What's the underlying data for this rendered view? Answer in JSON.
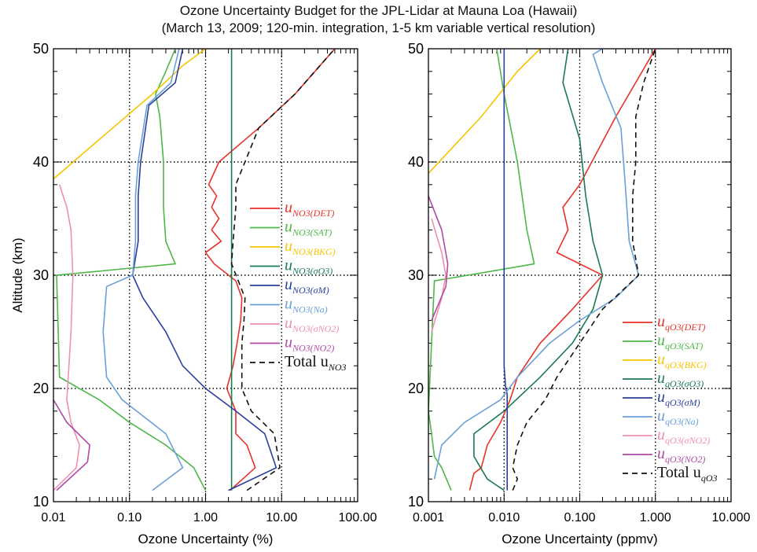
{
  "title_line1": "Ozone Uncertainty Budget for the JPL-Lidar at Mauna Loa (Hawaii)",
  "title_line2": "(March 13, 2009; 120-min. integration, 1-5 km variable vertical resolution)",
  "colors": {
    "det": "#e8312a",
    "sat": "#4cb848",
    "bkg": "#f5c400",
    "so3": "#1a7a52",
    "sm": "#2b3f9e",
    "na": "#6aa0d8",
    "sno2": "#f08fb0",
    "no2": "#b04aa8",
    "total": "#111111"
  },
  "chart_data": [
    {
      "type": "line",
      "xscale": "log",
      "xlim": [
        0.01,
        100
      ],
      "ylim": [
        10,
        50
      ],
      "xticks": [
        0.01,
        0.1,
        1,
        10,
        100
      ],
      "xticklabels": [
        "0.01",
        "0.10",
        "1.00",
        "10.00",
        "100.00"
      ],
      "yticks": [
        10,
        20,
        30,
        40,
        50
      ],
      "yticklabels": [
        "10",
        "20",
        "30",
        "40",
        "50"
      ],
      "xlabel": "Ozone Uncertainty (%)",
      "ylabel": "Altitude (km)",
      "grid": "dotted at major ticks",
      "legend_position": "right-center",
      "series": [
        {
          "key": "det",
          "name": "u_NO3(DET)",
          "base": "u",
          "sub": "NO3(DET)",
          "dashed": false,
          "points": [
            [
              2.1,
              11
            ],
            [
              4.5,
              13
            ],
            [
              3.5,
              15
            ],
            [
              2.5,
              16
            ],
            [
              2.5,
              18
            ],
            [
              1.9,
              20
            ],
            [
              2.3,
              22
            ],
            [
              2.6,
              24
            ],
            [
              2.9,
              26
            ],
            [
              3.0,
              28
            ],
            [
              2.5,
              29.5
            ],
            [
              1.3,
              31
            ],
            [
              1.0,
              32
            ],
            [
              1.6,
              33
            ],
            [
              1.2,
              34
            ],
            [
              1.5,
              35
            ],
            [
              1.2,
              36
            ],
            [
              1.4,
              37
            ],
            [
              1.1,
              38
            ],
            [
              1.5,
              40
            ],
            [
              5,
              43
            ],
            [
              15,
              46
            ],
            [
              50,
              50
            ]
          ]
        },
        {
          "key": "sat",
          "name": "u_NO3(SAT)",
          "base": "u",
          "sub": "NO3(SAT)",
          "dashed": false,
          "points": [
            [
              1.0,
              11
            ],
            [
              0.7,
              13
            ],
            [
              0.3,
              15
            ],
            [
              0.1,
              17
            ],
            [
              0.04,
              19
            ],
            [
              0.012,
              21
            ],
            [
              0.011,
              30
            ],
            [
              0.4,
              31
            ],
            [
              0.3,
              33
            ],
            [
              0.28,
              36
            ],
            [
              0.28,
              40
            ],
            [
              0.25,
              44
            ],
            [
              0.22,
              46
            ],
            [
              0.3,
              48
            ],
            [
              0.4,
              50
            ]
          ]
        },
        {
          "key": "bkg",
          "name": "u_NO3(BKG)",
          "base": "u",
          "sub": "NO3(BKG)",
          "dashed": false,
          "points": [
            [
              0.01,
              38.5
            ],
            [
              0.06,
              43
            ],
            [
              0.2,
              46
            ],
            [
              0.5,
              48.5
            ],
            [
              1.0,
              50
            ]
          ]
        },
        {
          "key": "so3",
          "name": "u_NO3(σO3)",
          "base": "u",
          "sub": "NO3(σO3)",
          "dashed": false,
          "points": [
            [
              2.2,
              11
            ],
            [
              2.2,
              50
            ]
          ]
        },
        {
          "key": "sm",
          "name": "u_NO3(σM)",
          "base": "u",
          "sub": "NO3(σM)",
          "dashed": false,
          "points": [
            [
              2.0,
              11
            ],
            [
              8.5,
              13
            ],
            [
              6,
              16
            ],
            [
              2.5,
              18
            ],
            [
              1.0,
              20
            ],
            [
              0.5,
              22
            ],
            [
              0.3,
              25
            ],
            [
              0.15,
              28
            ],
            [
              0.11,
              30
            ],
            [
              0.13,
              33
            ],
            [
              0.13,
              37
            ],
            [
              0.14,
              40
            ],
            [
              0.18,
              45
            ],
            [
              0.4,
              47
            ],
            [
              0.5,
              50
            ]
          ]
        },
        {
          "key": "na",
          "name": "u_NO3(Na)",
          "base": "u",
          "sub": "NO3(Na)",
          "dashed": false,
          "points": [
            [
              0.2,
              11
            ],
            [
              0.5,
              13
            ],
            [
              0.3,
              16
            ],
            [
              0.08,
              19
            ],
            [
              0.05,
              21
            ],
            [
              0.045,
              25
            ],
            [
              0.05,
              29
            ],
            [
              0.11,
              30
            ],
            [
              0.12,
              33
            ],
            [
              0.12,
              37
            ],
            [
              0.13,
              40
            ],
            [
              0.17,
              45
            ],
            [
              0.35,
              47
            ],
            [
              0.45,
              50
            ]
          ]
        },
        {
          "key": "sno2",
          "name": "u_NO3(σNO2)",
          "base": "u",
          "sub": "NO3(σNO2)",
          "dashed": false,
          "points": [
            [
              0.01,
              11
            ],
            [
              0.02,
              13
            ],
            [
              0.022,
              15
            ],
            [
              0.017,
              17
            ],
            [
              0.015,
              19
            ],
            [
              0.016,
              22
            ],
            [
              0.017,
              25
            ],
            [
              0.018,
              30
            ],
            [
              0.017,
              34
            ],
            [
              0.015,
              36
            ],
            [
              0.012,
              38
            ]
          ]
        },
        {
          "key": "no2",
          "name": "u_NO3(NO2)",
          "base": "u",
          "sub": "NO3(NO2)",
          "dashed": false,
          "points": [
            [
              0.011,
              11
            ],
            [
              0.028,
              13.5
            ],
            [
              0.03,
              15
            ],
            [
              0.015,
              17
            ],
            [
              0.01,
              19
            ]
          ]
        },
        {
          "key": "total",
          "name": "Total u_NO3",
          "base": "Total u",
          "sub": "NO3",
          "dashed": true,
          "points": [
            [
              3.5,
              11
            ],
            [
              9.5,
              13
            ],
            [
              8,
              16
            ],
            [
              4,
              18
            ],
            [
              3,
              20
            ],
            [
              3,
              24
            ],
            [
              3.2,
              26
            ],
            [
              3.3,
              28
            ],
            [
              2.2,
              31
            ],
            [
              2.3,
              33
            ],
            [
              2.5,
              36
            ],
            [
              2.5,
              38
            ],
            [
              5,
              43
            ],
            [
              15,
              46
            ],
            [
              50,
              50
            ]
          ]
        }
      ]
    },
    {
      "type": "line",
      "xscale": "log",
      "xlim": [
        0.001,
        10
      ],
      "ylim": [
        10,
        50
      ],
      "xticks": [
        0.001,
        0.01,
        0.1,
        1,
        10
      ],
      "xticklabels": [
        "0.001",
        "0.010",
        "0.100",
        "1.000",
        "10.000"
      ],
      "yticks": [
        10,
        20,
        30,
        40,
        50
      ],
      "yticklabels": [
        "10",
        "20",
        "30",
        "40",
        "50"
      ],
      "xlabel": "Ozone Uncertainty (ppmv)",
      "ylabel": "",
      "grid": "dotted at major ticks",
      "legend_position": "bottom-right",
      "series": [
        {
          "key": "det",
          "name": "u_qO3(DET)",
          "base": "u",
          "sub": "qO3(DET)",
          "dashed": false,
          "points": [
            [
              0.0035,
              11
            ],
            [
              0.004,
              12.5
            ],
            [
              0.005,
              13
            ],
            [
              0.006,
              15
            ],
            [
              0.009,
              17
            ],
            [
              0.012,
              19
            ],
            [
              0.015,
              21
            ],
            [
              0.03,
              24
            ],
            [
              0.08,
              27
            ],
            [
              0.2,
              30
            ],
            [
              0.1,
              31
            ],
            [
              0.05,
              32
            ],
            [
              0.07,
              34
            ],
            [
              0.06,
              36
            ],
            [
              0.1,
              38
            ],
            [
              0.3,
              44
            ],
            [
              1.0,
              50
            ]
          ]
        },
        {
          "key": "sat",
          "name": "u_qO3(SAT)",
          "base": "u",
          "sub": "qO3(SAT)",
          "dashed": false,
          "points": [
            [
              0.002,
              11
            ],
            [
              0.0015,
              13
            ],
            [
              0.0012,
              14
            ],
            [
              0.0011,
              16
            ],
            [
              0.001,
              18
            ],
            [
              0.0012,
              29.5
            ],
            [
              0.025,
              31
            ],
            [
              0.02,
              34
            ],
            [
              0.015,
              40
            ],
            [
              0.01,
              46
            ],
            [
              0.008,
              50
            ]
          ]
        },
        {
          "key": "bkg",
          "name": "u_qO3(BKG)",
          "base": "u",
          "sub": "qO3(BKG)",
          "dashed": false,
          "points": [
            [
              0.001,
              39
            ],
            [
              0.005,
              44
            ],
            [
              0.015,
              48
            ],
            [
              0.03,
              50
            ]
          ]
        },
        {
          "key": "so3",
          "name": "u_qO3(σO3)",
          "base": "u",
          "sub": "qO3(σO3)",
          "dashed": false,
          "points": [
            [
              0.01,
              11
            ],
            [
              0.006,
              12
            ],
            [
              0.004,
              14
            ],
            [
              0.004,
              16
            ],
            [
              0.01,
              18
            ],
            [
              0.03,
              21
            ],
            [
              0.08,
              24
            ],
            [
              0.15,
              27
            ],
            [
              0.2,
              30
            ],
            [
              0.15,
              33
            ],
            [
              0.12,
              37
            ],
            [
              0.1,
              42
            ],
            [
              0.06,
              47
            ],
            [
              0.07,
              50
            ]
          ]
        },
        {
          "key": "sm",
          "name": "u_qO3(σM)",
          "base": "u",
          "sub": "qO3(σM)",
          "dashed": false,
          "points": [
            [
              0.011,
              11
            ],
            [
              0.011,
              13
            ],
            [
              0.011,
              19.5
            ],
            [
              0.0105,
              20
            ],
            [
              0.01,
              22
            ],
            [
              0.01,
              30
            ],
            [
              0.01,
              40
            ],
            [
              0.01,
              50
            ]
          ]
        },
        {
          "key": "na",
          "name": "u_qO3(Na)",
          "base": "u",
          "sub": "qO3(Na)",
          "dashed": false,
          "points": [
            [
              0.0012,
              12
            ],
            [
              0.0015,
              15
            ],
            [
              0.003,
              17
            ],
            [
              0.009,
              19
            ],
            [
              0.015,
              21
            ],
            [
              0.04,
              24
            ],
            [
              0.1,
              26
            ],
            [
              0.3,
              28
            ],
            [
              0.6,
              30
            ],
            [
              0.45,
              33
            ],
            [
              0.4,
              38
            ],
            [
              0.35,
              43
            ],
            [
              0.2,
              47
            ],
            [
              0.15,
              49.5
            ],
            [
              0.2,
              50
            ]
          ]
        },
        {
          "key": "sno2",
          "name": "u_qO3(σNO2)",
          "base": "u",
          "sub": "qO3(σNO2)",
          "dashed": false,
          "points": [
            [
              0.0011,
              25
            ],
            [
              0.0015,
              28
            ],
            [
              0.0017,
              30
            ],
            [
              0.0015,
              32
            ],
            [
              0.0011,
              35
            ]
          ]
        },
        {
          "key": "no2",
          "name": "u_qO3(NO2)",
          "base": "u",
          "sub": "qO3(NO2)",
          "dashed": false,
          "points": [
            [
              0.0011,
              26
            ],
            [
              0.0017,
              29
            ],
            [
              0.0018,
              31
            ],
            [
              0.0015,
              34
            ],
            [
              0.001,
              37
            ]
          ]
        },
        {
          "key": "total",
          "name": "Total u_qO3",
          "base": "Total u",
          "sub": "qO3",
          "dashed": true,
          "points": [
            [
              0.013,
              11
            ],
            [
              0.015,
              12
            ],
            [
              0.013,
              13
            ],
            [
              0.015,
              15
            ],
            [
              0.02,
              17
            ],
            [
              0.035,
              19
            ],
            [
              0.05,
              21
            ],
            [
              0.1,
              24
            ],
            [
              0.2,
              27
            ],
            [
              0.6,
              30
            ],
            [
              0.5,
              33
            ],
            [
              0.5,
              37
            ],
            [
              0.55,
              40
            ],
            [
              0.55,
              44
            ],
            [
              0.7,
              47
            ],
            [
              1.0,
              50
            ]
          ]
        }
      ]
    }
  ]
}
